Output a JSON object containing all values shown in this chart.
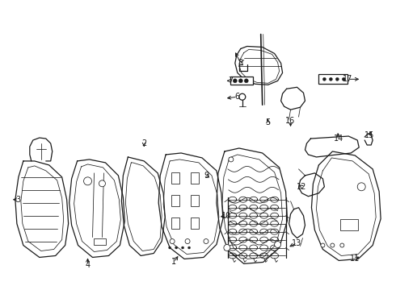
{
  "bg_color": "#ffffff",
  "lc": "#1a1a1a",
  "lw": 0.9,
  "tlw": 0.55,
  "fig_width": 4.9,
  "fig_height": 3.6,
  "dpi": 100
}
